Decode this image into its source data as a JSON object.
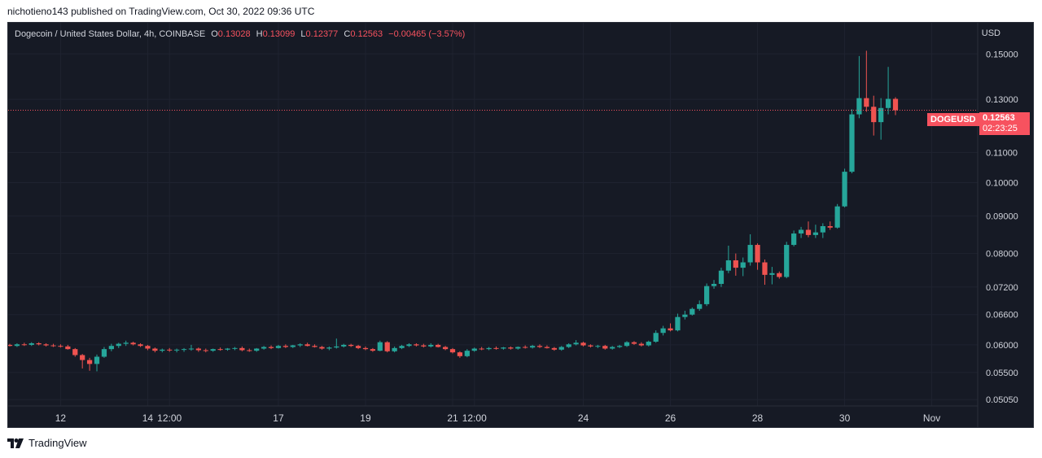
{
  "header": {
    "published_text": "nichotieno143 published on TradingView.com, Oct 30, 2022 09:36 UTC"
  },
  "legend": {
    "title": "Dogecoin / United States Dollar, 4h, COINBASE",
    "o_key": "O",
    "o_val": "0.13028",
    "h_key": "H",
    "h_val": "0.13099",
    "l_key": "L",
    "l_val": "0.12377",
    "c_key": "C",
    "c_val": "0.12563",
    "change": "−0.00465 (−3.57%)"
  },
  "axis": {
    "currency": "USD"
  },
  "price_tag": {
    "symbol": "DOGEUSD",
    "price": "0.12563",
    "countdown": "02:23:25"
  },
  "footer": {
    "brand": "TradingView"
  },
  "colors": {
    "up": "#26a69a",
    "down": "#ef5350",
    "background": "#161a25",
    "grid": "#1f2330",
    "text": "#d1d4dc",
    "tag": "#f7525f"
  },
  "chart_data": {
    "type": "candlestick",
    "symbol": "DOGEUSD",
    "interval": "4h",
    "exchange": "COINBASE",
    "scale": "log",
    "ylim": [
      0.0495,
      0.158
    ],
    "yticks": [
      "0.15000",
      "0.13000",
      "0.11000",
      "0.10000",
      "0.09000",
      "0.08000",
      "0.07200",
      "0.06600",
      "0.06000",
      "0.05500",
      "0.05050"
    ],
    "xticks": [
      "12",
      "14",
      "12:00",
      "17",
      "19",
      "21",
      "12:00",
      "24",
      "26",
      "28",
      "30",
      "Nov"
    ],
    "last_price": 0.12563,
    "grid": true,
    "candles": [
      {
        "o": 0.06,
        "h": 0.0602,
        "l": 0.0597,
        "c": 0.0598
      },
      {
        "o": 0.0598,
        "h": 0.0603,
        "l": 0.0596,
        "c": 0.0601
      },
      {
        "o": 0.0601,
        "h": 0.0604,
        "l": 0.0598,
        "c": 0.06
      },
      {
        "o": 0.06,
        "h": 0.0605,
        "l": 0.0598,
        "c": 0.0603
      },
      {
        "o": 0.0603,
        "h": 0.0605,
        "l": 0.0599,
        "c": 0.0601
      },
      {
        "o": 0.0601,
        "h": 0.0603,
        "l": 0.0597,
        "c": 0.0599
      },
      {
        "o": 0.0599,
        "h": 0.0602,
        "l": 0.0596,
        "c": 0.0598
      },
      {
        "o": 0.0598,
        "h": 0.0601,
        "l": 0.0595,
        "c": 0.0597
      },
      {
        "o": 0.0597,
        "h": 0.06,
        "l": 0.0591,
        "c": 0.0592
      },
      {
        "o": 0.0592,
        "h": 0.0594,
        "l": 0.0578,
        "c": 0.0581
      },
      {
        "o": 0.0581,
        "h": 0.0583,
        "l": 0.0557,
        "c": 0.0572
      },
      {
        "o": 0.0572,
        "h": 0.0576,
        "l": 0.0553,
        "c": 0.0565
      },
      {
        "o": 0.0565,
        "h": 0.0582,
        "l": 0.0552,
        "c": 0.0578
      },
      {
        "o": 0.0578,
        "h": 0.0596,
        "l": 0.0576,
        "c": 0.0592
      },
      {
        "o": 0.0592,
        "h": 0.0602,
        "l": 0.0588,
        "c": 0.0598
      },
      {
        "o": 0.0598,
        "h": 0.0604,
        "l": 0.0594,
        "c": 0.0602
      },
      {
        "o": 0.0602,
        "h": 0.0608,
        "l": 0.0598,
        "c": 0.0604
      },
      {
        "o": 0.0604,
        "h": 0.0606,
        "l": 0.0599,
        "c": 0.0601
      },
      {
        "o": 0.0601,
        "h": 0.0603,
        "l": 0.0596,
        "c": 0.0598
      },
      {
        "o": 0.0598,
        "h": 0.06,
        "l": 0.059,
        "c": 0.0593
      },
      {
        "o": 0.0593,
        "h": 0.0595,
        "l": 0.0586,
        "c": 0.0589
      },
      {
        "o": 0.0589,
        "h": 0.0593,
        "l": 0.0586,
        "c": 0.0591
      },
      {
        "o": 0.0591,
        "h": 0.0594,
        "l": 0.0587,
        "c": 0.059
      },
      {
        "o": 0.059,
        "h": 0.0593,
        "l": 0.0586,
        "c": 0.0591
      },
      {
        "o": 0.0591,
        "h": 0.0594,
        "l": 0.0587,
        "c": 0.0592
      },
      {
        "o": 0.0592,
        "h": 0.06,
        "l": 0.0589,
        "c": 0.0593
      },
      {
        "o": 0.0593,
        "h": 0.0595,
        "l": 0.0587,
        "c": 0.059
      },
      {
        "o": 0.059,
        "h": 0.0593,
        "l": 0.0586,
        "c": 0.0589
      },
      {
        "o": 0.0589,
        "h": 0.0593,
        "l": 0.0587,
        "c": 0.0592
      },
      {
        "o": 0.0592,
        "h": 0.0595,
        "l": 0.0589,
        "c": 0.0591
      },
      {
        "o": 0.0591,
        "h": 0.0594,
        "l": 0.0589,
        "c": 0.0593
      },
      {
        "o": 0.0593,
        "h": 0.0596,
        "l": 0.059,
        "c": 0.0594
      },
      {
        "o": 0.0594,
        "h": 0.0597,
        "l": 0.0588,
        "c": 0.059
      },
      {
        "o": 0.059,
        "h": 0.0593,
        "l": 0.0587,
        "c": 0.0589
      },
      {
        "o": 0.0589,
        "h": 0.0594,
        "l": 0.0587,
        "c": 0.0593
      },
      {
        "o": 0.0593,
        "h": 0.0598,
        "l": 0.0591,
        "c": 0.0596
      },
      {
        "o": 0.0596,
        "h": 0.0599,
        "l": 0.0592,
        "c": 0.0594
      },
      {
        "o": 0.0594,
        "h": 0.06,
        "l": 0.0593,
        "c": 0.0598
      },
      {
        "o": 0.0598,
        "h": 0.0601,
        "l": 0.0594,
        "c": 0.0596
      },
      {
        "o": 0.0596,
        "h": 0.06,
        "l": 0.0594,
        "c": 0.0599
      },
      {
        "o": 0.0599,
        "h": 0.0603,
        "l": 0.0596,
        "c": 0.0601
      },
      {
        "o": 0.0601,
        "h": 0.0604,
        "l": 0.0597,
        "c": 0.0598
      },
      {
        "o": 0.0598,
        "h": 0.0601,
        "l": 0.0595,
        "c": 0.0596
      },
      {
        "o": 0.0596,
        "h": 0.0598,
        "l": 0.0591,
        "c": 0.0593
      },
      {
        "o": 0.0593,
        "h": 0.0597,
        "l": 0.059,
        "c": 0.0595
      },
      {
        "o": 0.0595,
        "h": 0.0612,
        "l": 0.0593,
        "c": 0.0597
      },
      {
        "o": 0.0597,
        "h": 0.0602,
        "l": 0.0595,
        "c": 0.06
      },
      {
        "o": 0.06,
        "h": 0.0602,
        "l": 0.0596,
        "c": 0.0598
      },
      {
        "o": 0.0598,
        "h": 0.06,
        "l": 0.0592,
        "c": 0.0594
      },
      {
        "o": 0.0594,
        "h": 0.0597,
        "l": 0.059,
        "c": 0.0592
      },
      {
        "o": 0.0592,
        "h": 0.0594,
        "l": 0.0587,
        "c": 0.0589
      },
      {
        "o": 0.0589,
        "h": 0.0608,
        "l": 0.0588,
        "c": 0.0605
      },
      {
        "o": 0.0605,
        "h": 0.0607,
        "l": 0.0586,
        "c": 0.0588
      },
      {
        "o": 0.0588,
        "h": 0.0597,
        "l": 0.0586,
        "c": 0.0594
      },
      {
        "o": 0.0594,
        "h": 0.06,
        "l": 0.0592,
        "c": 0.0598
      },
      {
        "o": 0.0598,
        "h": 0.0603,
        "l": 0.0596,
        "c": 0.0601
      },
      {
        "o": 0.0601,
        "h": 0.0603,
        "l": 0.0597,
        "c": 0.0599
      },
      {
        "o": 0.0599,
        "h": 0.0602,
        "l": 0.0595,
        "c": 0.0597
      },
      {
        "o": 0.0597,
        "h": 0.0603,
        "l": 0.0595,
        "c": 0.06
      },
      {
        "o": 0.06,
        "h": 0.0602,
        "l": 0.0595,
        "c": 0.0596
      },
      {
        "o": 0.0596,
        "h": 0.0598,
        "l": 0.059,
        "c": 0.0592
      },
      {
        "o": 0.0592,
        "h": 0.0594,
        "l": 0.0584,
        "c": 0.0586
      },
      {
        "o": 0.0586,
        "h": 0.0588,
        "l": 0.0576,
        "c": 0.0579
      },
      {
        "o": 0.0579,
        "h": 0.0592,
        "l": 0.0577,
        "c": 0.0589
      },
      {
        "o": 0.0589,
        "h": 0.0595,
        "l": 0.0587,
        "c": 0.0593
      },
      {
        "o": 0.0593,
        "h": 0.0596,
        "l": 0.059,
        "c": 0.0592
      },
      {
        "o": 0.0592,
        "h": 0.0596,
        "l": 0.059,
        "c": 0.0594
      },
      {
        "o": 0.0594,
        "h": 0.0597,
        "l": 0.0591,
        "c": 0.0593
      },
      {
        "o": 0.0593,
        "h": 0.0596,
        "l": 0.0591,
        "c": 0.0595
      },
      {
        "o": 0.0595,
        "h": 0.0597,
        "l": 0.0591,
        "c": 0.0593
      },
      {
        "o": 0.0593,
        "h": 0.0597,
        "l": 0.0591,
        "c": 0.0596
      },
      {
        "o": 0.0596,
        "h": 0.0599,
        "l": 0.0593,
        "c": 0.0595
      },
      {
        "o": 0.0595,
        "h": 0.06,
        "l": 0.0593,
        "c": 0.0598
      },
      {
        "o": 0.0598,
        "h": 0.0601,
        "l": 0.0594,
        "c": 0.0596
      },
      {
        "o": 0.0596,
        "h": 0.0599,
        "l": 0.0593,
        "c": 0.0594
      },
      {
        "o": 0.0594,
        "h": 0.0596,
        "l": 0.0589,
        "c": 0.0591
      },
      {
        "o": 0.0591,
        "h": 0.0598,
        "l": 0.0589,
        "c": 0.0596
      },
      {
        "o": 0.0596,
        "h": 0.0603,
        "l": 0.0594,
        "c": 0.0601
      },
      {
        "o": 0.0601,
        "h": 0.0609,
        "l": 0.0599,
        "c": 0.0604
      },
      {
        "o": 0.0604,
        "h": 0.0606,
        "l": 0.0597,
        "c": 0.0599
      },
      {
        "o": 0.0599,
        "h": 0.0601,
        "l": 0.0595,
        "c": 0.0597
      },
      {
        "o": 0.0597,
        "h": 0.06,
        "l": 0.0594,
        "c": 0.0598
      },
      {
        "o": 0.0598,
        "h": 0.06,
        "l": 0.0591,
        "c": 0.0593
      },
      {
        "o": 0.0593,
        "h": 0.0598,
        "l": 0.0591,
        "c": 0.0596
      },
      {
        "o": 0.0596,
        "h": 0.06,
        "l": 0.0594,
        "c": 0.0598
      },
      {
        "o": 0.0598,
        "h": 0.0607,
        "l": 0.0596,
        "c": 0.0605
      },
      {
        "o": 0.0605,
        "h": 0.0607,
        "l": 0.06,
        "c": 0.0602
      },
      {
        "o": 0.0602,
        "h": 0.0605,
        "l": 0.0597,
        "c": 0.0599
      },
      {
        "o": 0.0599,
        "h": 0.0608,
        "l": 0.0597,
        "c": 0.0606
      },
      {
        "o": 0.0606,
        "h": 0.0628,
        "l": 0.0604,
        "c": 0.0623
      },
      {
        "o": 0.0623,
        "h": 0.0637,
        "l": 0.0618,
        "c": 0.0632
      },
      {
        "o": 0.0632,
        "h": 0.0642,
        "l": 0.0626,
        "c": 0.0628
      },
      {
        "o": 0.0628,
        "h": 0.0662,
        "l": 0.0626,
        "c": 0.0655
      },
      {
        "o": 0.0655,
        "h": 0.0668,
        "l": 0.065,
        "c": 0.066
      },
      {
        "o": 0.066,
        "h": 0.0675,
        "l": 0.0658,
        "c": 0.0672
      },
      {
        "o": 0.0672,
        "h": 0.069,
        "l": 0.0668,
        "c": 0.0682
      },
      {
        "o": 0.0682,
        "h": 0.0728,
        "l": 0.0678,
        "c": 0.0722
      },
      {
        "o": 0.0722,
        "h": 0.0736,
        "l": 0.0716,
        "c": 0.0727
      },
      {
        "o": 0.0727,
        "h": 0.0765,
        "l": 0.072,
        "c": 0.0758
      },
      {
        "o": 0.0758,
        "h": 0.082,
        "l": 0.0752,
        "c": 0.0783
      },
      {
        "o": 0.0783,
        "h": 0.08,
        "l": 0.0746,
        "c": 0.0765
      },
      {
        "o": 0.0765,
        "h": 0.079,
        "l": 0.0745,
        "c": 0.0778
      },
      {
        "o": 0.0778,
        "h": 0.085,
        "l": 0.077,
        "c": 0.0822
      },
      {
        "o": 0.0822,
        "h": 0.0826,
        "l": 0.076,
        "c": 0.0778
      },
      {
        "o": 0.0778,
        "h": 0.0785,
        "l": 0.0725,
        "c": 0.0748
      },
      {
        "o": 0.0748,
        "h": 0.0767,
        "l": 0.0726,
        "c": 0.0752
      },
      {
        "o": 0.0752,
        "h": 0.0756,
        "l": 0.0739,
        "c": 0.0743
      },
      {
        "o": 0.0743,
        "h": 0.083,
        "l": 0.074,
        "c": 0.0822
      },
      {
        "o": 0.0822,
        "h": 0.086,
        "l": 0.0818,
        "c": 0.0852
      },
      {
        "o": 0.0852,
        "h": 0.087,
        "l": 0.084,
        "c": 0.0862
      },
      {
        "o": 0.0862,
        "h": 0.0885,
        "l": 0.0842,
        "c": 0.0848
      },
      {
        "o": 0.0848,
        "h": 0.0876,
        "l": 0.084,
        "c": 0.0855
      },
      {
        "o": 0.0855,
        "h": 0.088,
        "l": 0.084,
        "c": 0.0872
      },
      {
        "o": 0.0872,
        "h": 0.0885,
        "l": 0.0862,
        "c": 0.0868
      },
      {
        "o": 0.0868,
        "h": 0.0935,
        "l": 0.0865,
        "c": 0.0928
      },
      {
        "o": 0.0928,
        "h": 0.1045,
        "l": 0.0925,
        "c": 0.1035
      },
      {
        "o": 0.1035,
        "h": 0.126,
        "l": 0.103,
        "c": 0.124
      },
      {
        "o": 0.124,
        "h": 0.149,
        "l": 0.1225,
        "c": 0.1305
      },
      {
        "o": 0.1305,
        "h": 0.1515,
        "l": 0.125,
        "c": 0.127
      },
      {
        "o": 0.127,
        "h": 0.1315,
        "l": 0.116,
        "c": 0.121
      },
      {
        "o": 0.121,
        "h": 0.1305,
        "l": 0.1145,
        "c": 0.1265
      },
      {
        "o": 0.1265,
        "h": 0.144,
        "l": 0.124,
        "c": 0.1302
      },
      {
        "o": 0.1302,
        "h": 0.1309,
        "l": 0.1237,
        "c": 0.1256
      }
    ]
  }
}
